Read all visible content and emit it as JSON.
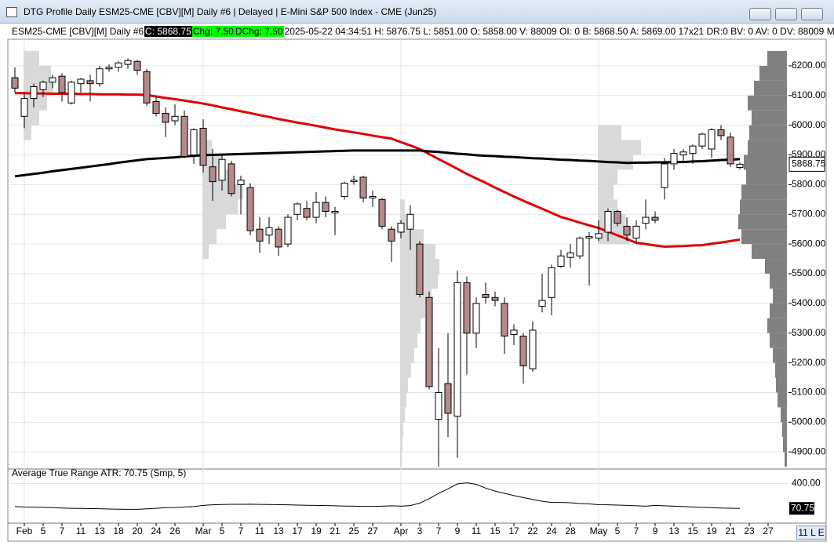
{
  "window": {
    "title": "DTG Profile Daily ESM25-CME [CBV][M]  Daily #6 | Delayed | E-Mini S&P 500 Index - CME (Jun25)"
  },
  "header": {
    "symbol": "ESM25-CME [CBV][M]  Daily #6",
    "close": "C: 5868.75",
    "change": "Chg: 7.50",
    "daily_change": "DChg: 7.50",
    "details": "2025-05-22 04:34:51 H: 5876.75 L: 5851.00 O: 5858.00 V: 88009 OI: 0 B: 5868.50 A: 5869.00 17x21 DR:0 BV: 0 AV: 0 DV: 88009 Mov"
  },
  "status": "11 L E",
  "chart_data": {
    "type": "candlestick",
    "categories": [
      null,
      "Feb",
      null,
      "5",
      null,
      "7",
      null,
      "11",
      null,
      "13",
      null,
      "18",
      null,
      "20",
      null,
      "24",
      null,
      "26",
      null,
      null,
      "Mar",
      null,
      "5",
      null,
      "7",
      null,
      "11",
      null,
      "13",
      null,
      "17",
      null,
      "19",
      null,
      "21",
      null,
      "25",
      null,
      "27",
      null,
      null,
      "Apr",
      null,
      "3",
      null,
      "7",
      null,
      "9",
      null,
      "11",
      null,
      "15",
      null,
      "17",
      null,
      "22",
      null,
      "24",
      null,
      "28",
      null,
      null,
      "May",
      null,
      "5",
      null,
      "7",
      null,
      "9",
      null,
      "13",
      null,
      "15",
      null,
      "19",
      null,
      "21",
      null,
      "23",
      null,
      "27"
    ],
    "ohlc": {
      "up_color": "#ffffff",
      "down_color": "#b68a8a",
      "open": [
        6160,
        6030,
        6090,
        6120,
        6145,
        6165,
        6075,
        6140,
        6150,
        6140,
        6190,
        6195,
        6205,
        6215,
        6180,
        6080,
        6040,
        6015,
        6030,
        5900,
        5990,
        5860,
        5815,
        5870,
        5800,
        5790,
        5650,
        5630,
        5650,
        5600,
        5700,
        5720,
        5690,
        5740,
        5705,
        5760,
        5810,
        5825,
        5755,
        5750,
        5650,
        5640,
        5650,
        5600,
        5420,
        5010,
        5130,
        5020,
        5470,
        5300,
        5430,
        5420,
        5400,
        5295,
        5290,
        5180,
        5390,
        5420,
        5525,
        5555,
        5560,
        5620,
        5620,
        5640,
        5710,
        5660,
        5620,
        5670,
        5690,
        5790,
        5870,
        5900,
        5905,
        5930,
        5920,
        5985,
        5960,
        5858,
        null,
        null,
        null
      ],
      "high": [
        6195,
        6110,
        6140,
        6150,
        6170,
        6175,
        6150,
        6160,
        6170,
        6200,
        6205,
        6215,
        6225,
        6220,
        6190,
        6100,
        6060,
        6070,
        6050,
        5990,
        6020,
        5920,
        5900,
        5880,
        5830,
        5805,
        5690,
        5690,
        5660,
        5700,
        5740,
        5745,
        5775,
        5760,
        5725,
        5810,
        5830,
        5830,
        5780,
        5755,
        5660,
        5680,
        5730,
        5610,
        5440,
        5250,
        5300,
        5510,
        5490,
        5420,
        5470,
        5440,
        5420,
        5330,
        5300,
        5340,
        5500,
        5530,
        5580,
        5600,
        5625,
        5640,
        5680,
        5720,
        5715,
        5690,
        5680,
        5750,
        5710,
        5890,
        5920,
        5920,
        5935,
        5975,
        5990,
        6000,
        5975,
        5876.75,
        null,
        null,
        null
      ],
      "low": [
        6110,
        5990,
        6060,
        6095,
        6125,
        6080,
        6070,
        6110,
        6080,
        6130,
        6180,
        6180,
        6190,
        6170,
        6065,
        6030,
        5960,
        6000,
        5890,
        5870,
        5840,
        5745,
        5780,
        5760,
        5700,
        5630,
        5570,
        5600,
        5560,
        5590,
        5680,
        5680,
        5670,
        5690,
        5630,
        5750,
        5800,
        5740,
        5725,
        5650,
        5540,
        5620,
        5580,
        5420,
        5110,
        4850,
        4950,
        4880,
        5160,
        5250,
        5400,
        5390,
        5230,
        5260,
        5130,
        5170,
        5370,
        5360,
        5520,
        5520,
        5550,
        5460,
        5610,
        5610,
        5660,
        5610,
        5605,
        5650,
        5670,
        5750,
        5850,
        5880,
        5870,
        5920,
        5890,
        5950,
        5860,
        5851,
        null,
        null,
        null
      ],
      "close": [
        6125,
        6090,
        6130,
        6145,
        6160,
        6110,
        6145,
        6155,
        6140,
        6190,
        6195,
        6210,
        6218,
        6185,
        6075,
        6040,
        6010,
        6030,
        5895,
        5985,
        5865,
        5810,
        5885,
        5770,
        5815,
        5645,
        5610,
        5655,
        5590,
        5690,
        5735,
        5690,
        5740,
        5710,
        5710,
        5805,
        5815,
        5755,
        5760,
        5660,
        5610,
        5670,
        5700,
        5430,
        5120,
        5100,
        5030,
        5470,
        5300,
        5400,
        5420,
        5410,
        5290,
        5310,
        5190,
        5310,
        5410,
        5520,
        5560,
        5570,
        5620,
        5625,
        5635,
        5710,
        5670,
        5630,
        5660,
        5690,
        5680,
        5870,
        5905,
        5910,
        5930,
        5970,
        5985,
        5965,
        5870,
        5868.75,
        null,
        null,
        null
      ]
    },
    "lines": [
      {
        "color": "#e00000",
        "values": [
          6108,
          6108,
          6107,
          6107,
          6106,
          6106,
          6106,
          6105,
          6105,
          6104,
          6104,
          6104,
          6103,
          6103,
          6102,
          6097,
          6092,
          6088,
          6083,
          6078,
          6073,
          6067,
          6060,
          6054,
          6047,
          6041,
          6034,
          6028,
          6021,
          6015,
          6009,
          6004,
          5998,
          5992,
          5986,
          5981,
          5976,
          5971,
          5965,
          5960,
          5955,
          5943,
          5932,
          5920,
          5903,
          5886,
          5870,
          5853,
          5836,
          5821,
          5806,
          5790,
          5775,
          5760,
          5746,
          5732,
          5719,
          5705,
          5691,
          5682,
          5672,
          5663,
          5654,
          5642,
          5629,
          5617,
          5604,
          5600,
          5595,
          5591,
          5592,
          5593,
          5595,
          5596,
          5601,
          5605,
          5610,
          5615,
          null,
          null,
          null
        ]
      },
      {
        "color": "#000000",
        "values": [
          5828,
          5832,
          5836,
          5840,
          5845,
          5849,
          5853,
          5857,
          5861,
          5865,
          5869,
          5874,
          5878,
          5882,
          5886,
          5888,
          5890,
          5892,
          5895,
          5897,
          5899,
          5900,
          5901,
          5902,
          5903,
          5904,
          5905,
          5906,
          5907,
          5908,
          5909,
          5910,
          5911,
          5912,
          5913,
          5914,
          5915,
          5915,
          5915,
          5915,
          5915,
          5915,
          5915,
          5915,
          5912,
          5910,
          5907,
          5904,
          5902,
          5899,
          5897,
          5896,
          5894,
          5893,
          5891,
          5889,
          5888,
          5886,
          5884,
          5883,
          5881,
          5880,
          5878,
          5876,
          5875,
          5873,
          5874,
          5874,
          5875,
          5875,
          5876,
          5876,
          5878,
          5879,
          5881,
          5883,
          5884,
          5886,
          null,
          null,
          null
        ]
      }
    ],
    "profiles": [
      {
        "color": "#d9d9d9",
        "bins": [
          5950,
          6000,
          6050,
          6100,
          6150,
          6200,
          6250
        ],
        "values": [
          10,
          20,
          30,
          38,
          35,
          20
        ]
      },
      {
        "color": "#d9d9d9",
        "bins": [
          5550,
          5600,
          5650,
          5700,
          5750,
          5800,
          5850,
          5900,
          5950
        ],
        "values": [
          8,
          18,
          30,
          45,
          52,
          40,
          25,
          12
        ]
      },
      {
        "color": "#d9d9d9",
        "bins": [
          4850,
          4900,
          4950,
          5000,
          5050,
          5100,
          5150,
          5200,
          5250,
          5300,
          5350,
          5400,
          5450,
          5500,
          5550,
          5600,
          5650,
          5700,
          5750
        ],
        "values": [
          2,
          3,
          4,
          6,
          8,
          10,
          14,
          18,
          22,
          26,
          32,
          40,
          48,
          50,
          45,
          30,
          15,
          6
        ]
      },
      {
        "color": "#d9d9d9",
        "bins": [
          5600,
          5650,
          5700,
          5750,
          5800,
          5850,
          5900,
          5950,
          6000
        ],
        "values": [
          40,
          35,
          25,
          20,
          25,
          45,
          55,
          30
        ]
      }
    ],
    "composite": {
      "color": "#808080",
      "bins": [
        4850,
        4900,
        4950,
        5000,
        5050,
        5100,
        5150,
        5200,
        5250,
        5300,
        5350,
        5400,
        5450,
        5500,
        5550,
        5600,
        5650,
        5700,
        5750,
        5800,
        5850,
        5900,
        5950,
        6000,
        6050,
        6100,
        6150,
        6200,
        6250
      ],
      "values": [
        3,
        5,
        6,
        8,
        12,
        14,
        15,
        18,
        22,
        25,
        22,
        18,
        22,
        28,
        45,
        58,
        62,
        60,
        58,
        52,
        55,
        50,
        48,
        45,
        50,
        42,
        35,
        25
      ]
    },
    "ylim": [
      4845,
      6258
    ],
    "yticks": [
      {
        "value": 4900,
        "label": "4900.00"
      },
      {
        "value": 5000,
        "label": "5000.00"
      },
      {
        "value": 5100,
        "label": "5100.00"
      },
      {
        "value": 5200,
        "label": "5200.00"
      },
      {
        "value": 5300,
        "label": "5300.00"
      },
      {
        "value": 5400,
        "label": "5400.00"
      },
      {
        "value": 5500,
        "label": "5500.00"
      },
      {
        "value": 5600,
        "label": "5600.00"
      },
      {
        "value": 5700,
        "label": "5700.00"
      },
      {
        "value": 5800,
        "label": "5800.00"
      },
      {
        "value": 5900,
        "label": "5900.00"
      },
      {
        "value": 6000,
        "label": "6000.00"
      },
      {
        "value": 6100,
        "label": "6100.00"
      },
      {
        "value": 6200,
        "label": "6200.00"
      }
    ],
    "grid": true,
    "atr": {
      "title": "Average True Range  ATR: 70.75  (Smp, 5)",
      "color": "#000000",
      "ylim": [
        0,
        520
      ],
      "yticks": [
        {
          "value": 400,
          "label": "400.00"
        }
      ],
      "values": [
        95,
        90,
        88,
        85,
        80,
        75,
        72,
        70,
        68,
        66,
        62,
        60,
        58,
        58,
        65,
        72,
        80,
        82,
        90,
        95,
        110,
        118,
        122,
        125,
        125,
        126,
        124,
        122,
        120,
        118,
        115,
        112,
        110,
        108,
        105,
        102,
        100,
        98,
        97,
        100,
        105,
        100,
        108,
        140,
        200,
        270,
        330,
        395,
        410,
        390,
        340,
        300,
        270,
        240,
        215,
        190,
        165,
        150,
        150,
        145,
        135,
        130,
        120,
        118,
        115,
        110,
        105,
        100,
        110,
        105,
        100,
        95,
        90,
        85,
        80,
        76,
        73,
        70.75,
        null,
        null,
        null
      ]
    }
  }
}
